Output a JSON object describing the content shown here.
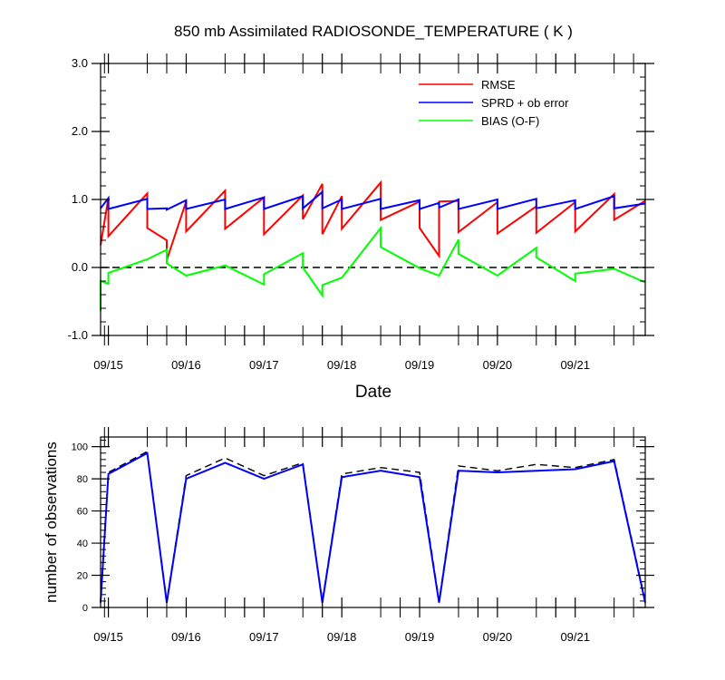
{
  "chart_data": [
    {
      "type": "line",
      "title": "850 mb Assimilated RADIOSONDE_TEMPERATURE ( K )",
      "xlabel": "Date",
      "ylabel": "",
      "ylim": [
        -1.0,
        3.0
      ],
      "yticks": [
        "-1.0",
        "0.0",
        "1.0",
        "2.0",
        "3.0"
      ],
      "xlim": [
        14.9,
        21.9
      ],
      "x_ticks": [
        {
          "label": "09/15",
          "value": 15.0
        },
        {
          "label": "09/16",
          "value": 16.0
        },
        {
          "label": "09/17",
          "value": 17.0
        },
        {
          "label": "09/18",
          "value": 18.0
        },
        {
          "label": "09/19",
          "value": 19.0
        },
        {
          "label": "09/20",
          "value": 20.0
        },
        {
          "label": "09/21",
          "value": 21.0
        }
      ],
      "legend_placement": "top-right",
      "series": [
        {
          "name": "RMSE",
          "color": "#ff0000",
          "points": [
            [
              14.9,
              0.33
            ],
            [
              15.0,
              1.02
            ],
            [
              15.0,
              0.46
            ],
            [
              15.5,
              1.09
            ],
            [
              15.5,
              0.58
            ],
            [
              15.75,
              0.4
            ],
            [
              15.75,
              0.11
            ],
            [
              16.0,
              0.97
            ],
            [
              16.0,
              0.53
            ],
            [
              16.5,
              1.13
            ],
            [
              16.5,
              0.57
            ],
            [
              17.0,
              1.03
            ],
            [
              17.0,
              0.49
            ],
            [
              17.5,
              1.06
            ],
            [
              17.5,
              0.71
            ],
            [
              17.75,
              1.23
            ],
            [
              17.75,
              0.49
            ],
            [
              18.0,
              1.05
            ],
            [
              18.0,
              0.57
            ],
            [
              18.5,
              1.25
            ],
            [
              18.5,
              0.7
            ],
            [
              19.0,
              0.97
            ],
            [
              19.0,
              0.58
            ],
            [
              19.25,
              0.17
            ],
            [
              19.25,
              0.97
            ],
            [
              19.5,
              0.98
            ],
            [
              19.5,
              0.52
            ],
            [
              20.0,
              0.96
            ],
            [
              20.0,
              0.5
            ],
            [
              20.5,
              0.9
            ],
            [
              20.5,
              0.51
            ],
            [
              21.0,
              0.96
            ],
            [
              21.0,
              0.53
            ],
            [
              21.5,
              1.08
            ],
            [
              21.5,
              0.7
            ],
            [
              21.9,
              0.98
            ]
          ]
        },
        {
          "name": "SPRD + ob error",
          "color": "#0000ff",
          "points": [
            [
              14.9,
              0.87
            ],
            [
              15.0,
              1.02
            ],
            [
              15.0,
              0.86
            ],
            [
              15.5,
              1.01
            ],
            [
              15.5,
              0.86
            ],
            [
              15.75,
              0.87
            ],
            [
              15.75,
              0.85
            ],
            [
              16.0,
              0.99
            ],
            [
              16.0,
              0.86
            ],
            [
              16.5,
              1.0
            ],
            [
              16.5,
              0.86
            ],
            [
              17.0,
              1.03
            ],
            [
              17.0,
              0.86
            ],
            [
              17.5,
              1.05
            ],
            [
              17.5,
              0.87
            ],
            [
              17.75,
              1.11
            ],
            [
              17.75,
              0.87
            ],
            [
              18.0,
              1.0
            ],
            [
              18.0,
              0.86
            ],
            [
              18.5,
              1.01
            ],
            [
              18.5,
              0.86
            ],
            [
              19.0,
              0.99
            ],
            [
              19.0,
              0.86
            ],
            [
              19.25,
              0.95
            ],
            [
              19.25,
              0.88
            ],
            [
              19.5,
              1.0
            ],
            [
              19.5,
              0.86
            ],
            [
              20.0,
              1.0
            ],
            [
              20.0,
              0.86
            ],
            [
              20.5,
              1.01
            ],
            [
              20.5,
              0.87
            ],
            [
              21.0,
              0.99
            ],
            [
              21.0,
              0.86
            ],
            [
              21.5,
              1.05
            ],
            [
              21.5,
              0.87
            ],
            [
              21.9,
              0.94
            ]
          ]
        },
        {
          "name": "BIAS (O-F)",
          "color": "#00ff00",
          "points": [
            [
              14.9,
              -0.64
            ],
            [
              14.9,
              -0.2
            ],
            [
              15.0,
              -0.24
            ],
            [
              15.0,
              -0.08
            ],
            [
              15.5,
              0.12
            ],
            [
              15.75,
              0.26
            ],
            [
              15.75,
              0.06
            ],
            [
              16.0,
              -0.12
            ],
            [
              16.5,
              0.03
            ],
            [
              17.0,
              -0.25
            ],
            [
              17.0,
              -0.1
            ],
            [
              17.5,
              0.21
            ],
            [
              17.5,
              0.0
            ],
            [
              17.75,
              -0.41
            ],
            [
              17.75,
              -0.26
            ],
            [
              18.0,
              -0.15
            ],
            [
              18.5,
              0.58
            ],
            [
              18.5,
              0.3
            ],
            [
              19.0,
              -0.01
            ],
            [
              19.25,
              -0.12
            ],
            [
              19.5,
              0.41
            ],
            [
              19.5,
              0.2
            ],
            [
              20.0,
              -0.12
            ],
            [
              20.5,
              0.29
            ],
            [
              20.5,
              0.15
            ],
            [
              21.0,
              -0.2
            ],
            [
              21.0,
              -0.09
            ],
            [
              21.5,
              -0.02
            ],
            [
              21.9,
              -0.22
            ]
          ]
        }
      ],
      "reference_line": {
        "y": 0.0,
        "style": "dashed"
      }
    },
    {
      "type": "line",
      "title": "",
      "xlabel": "",
      "ylabel": "number of observations",
      "ylim": [
        0,
        106
      ],
      "yticks": [
        "0",
        "20",
        "40",
        "60",
        "80",
        "100"
      ],
      "xlim": [
        14.9,
        21.9
      ],
      "x_ticks": [
        {
          "label": "09/15",
          "value": 15.0
        },
        {
          "label": "09/16",
          "value": 16.0
        },
        {
          "label": "09/17",
          "value": 17.0
        },
        {
          "label": "09/18",
          "value": 18.0
        },
        {
          "label": "09/19",
          "value": 19.0
        },
        {
          "label": "09/20",
          "value": 20.0
        },
        {
          "label": "09/21",
          "value": 21.0
        }
      ],
      "series": [
        {
          "style": "dashed",
          "color": "#000000",
          "points": [
            [
              14.9,
              4
            ],
            [
              15.0,
              84
            ],
            [
              15.5,
              97
            ],
            [
              15.75,
              4
            ],
            [
              16.0,
              82
            ],
            [
              16.5,
              93
            ],
            [
              17.0,
              82
            ],
            [
              17.5,
              90
            ],
            [
              17.75,
              4
            ],
            [
              18.0,
              83
            ],
            [
              18.5,
              87
            ],
            [
              19.0,
              84
            ],
            [
              19.25,
              4
            ],
            [
              19.5,
              88
            ],
            [
              20.0,
              85
            ],
            [
              20.5,
              89
            ],
            [
              21.0,
              87
            ],
            [
              21.5,
              92
            ],
            [
              21.9,
              4
            ]
          ]
        },
        {
          "color": "#0000ff",
          "points": [
            [
              14.9,
              3
            ],
            [
              15.0,
              83
            ],
            [
              15.5,
              96
            ],
            [
              15.75,
              3
            ],
            [
              16.0,
              80
            ],
            [
              16.5,
              90
            ],
            [
              17.0,
              80
            ],
            [
              17.5,
              89
            ],
            [
              17.75,
              3
            ],
            [
              18.0,
              81
            ],
            [
              18.5,
              85
            ],
            [
              19.0,
              81
            ],
            [
              19.25,
              3
            ],
            [
              19.5,
              85
            ],
            [
              20.0,
              84
            ],
            [
              20.5,
              85
            ],
            [
              21.0,
              86
            ],
            [
              21.5,
              91
            ],
            [
              21.9,
              3
            ]
          ]
        }
      ]
    }
  ]
}
